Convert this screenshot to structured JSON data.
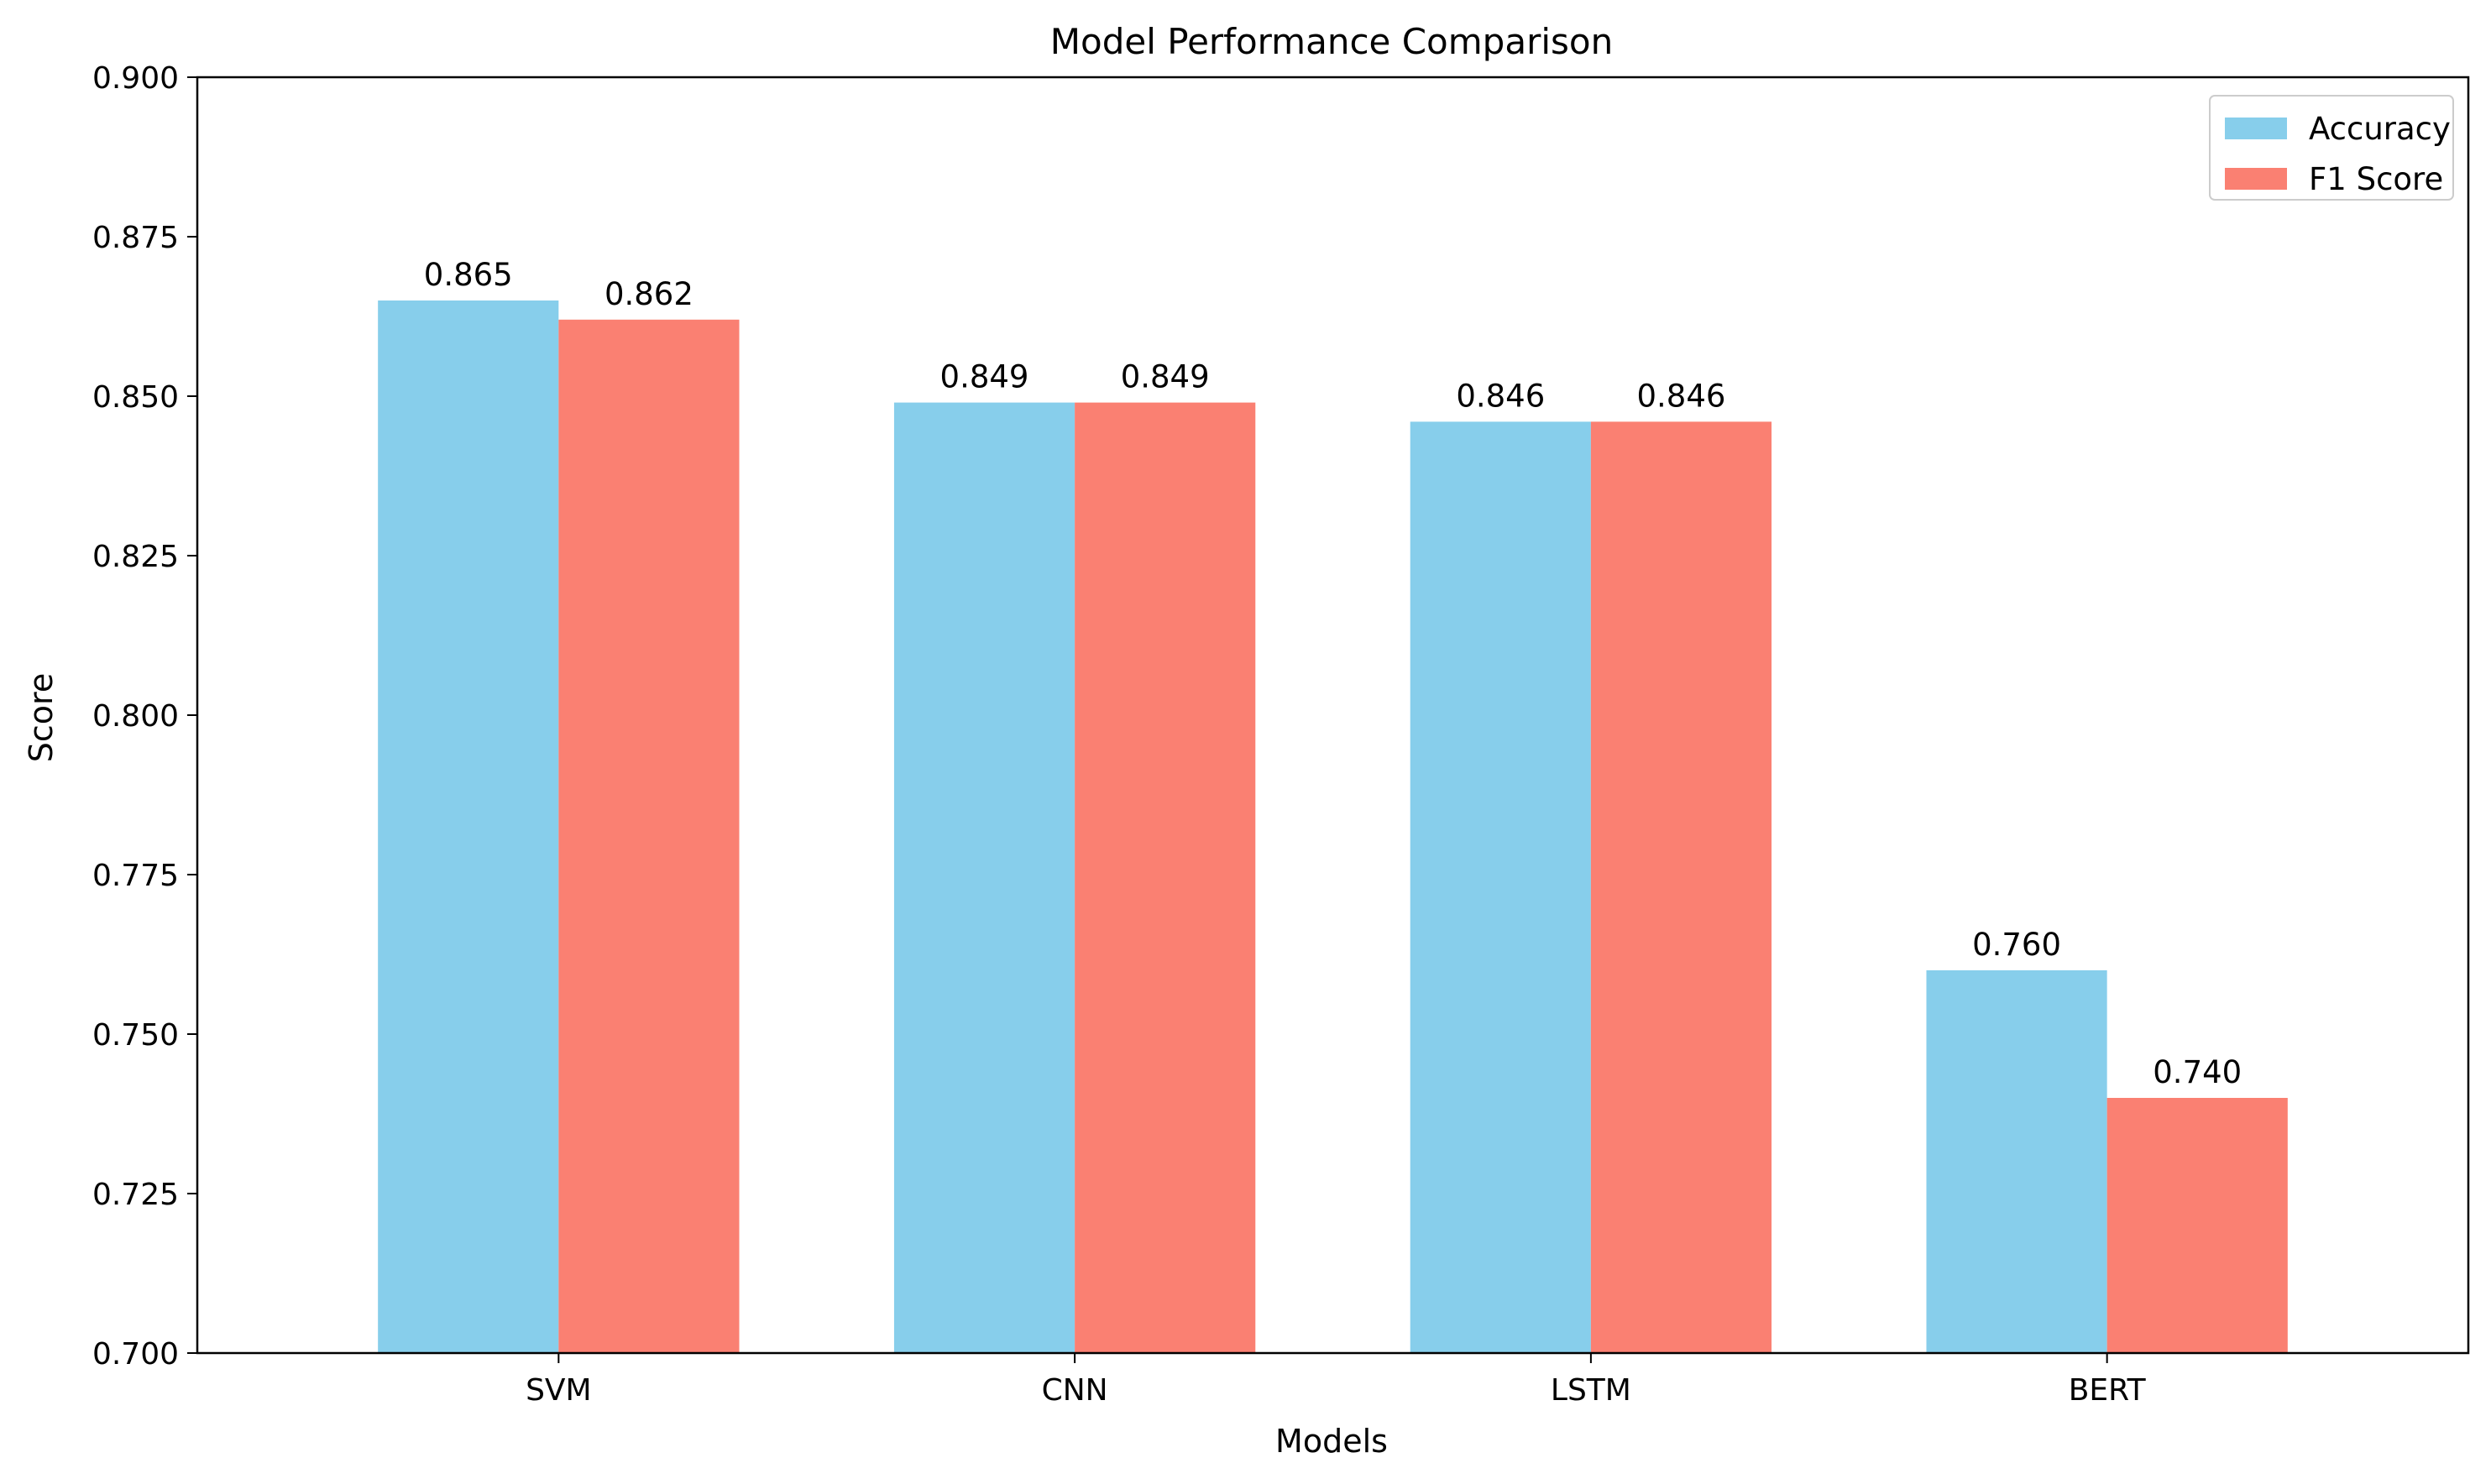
{
  "chart_data": {
    "type": "bar",
    "title": "Model Performance Comparison",
    "xlabel": "Models",
    "ylabel": "Score",
    "categories": [
      "SVM",
      "CNN",
      "LSTM",
      "BERT"
    ],
    "series": [
      {
        "name": "Accuracy",
        "values": [
          0.865,
          0.849,
          0.846,
          0.76
        ],
        "labels": [
          "0.865",
          "0.849",
          "0.846",
          "0.760"
        ],
        "color": "#87CEEB"
      },
      {
        "name": "F1 Score",
        "values": [
          0.862,
          0.849,
          0.846,
          0.74
        ],
        "labels": [
          "0.862",
          "0.849",
          "0.846",
          "0.740"
        ],
        "color": "#FA8072"
      }
    ],
    "ylim": [
      0.7,
      0.9
    ],
    "yticks": [
      0.7,
      0.725,
      0.75,
      0.775,
      0.8,
      0.825,
      0.85,
      0.875,
      0.9
    ],
    "ytick_labels": [
      "0.700",
      "0.725",
      "0.750",
      "0.775",
      "0.800",
      "0.825",
      "0.850",
      "0.875",
      "0.900"
    ],
    "grid": false,
    "legend_position": "top-right"
  }
}
